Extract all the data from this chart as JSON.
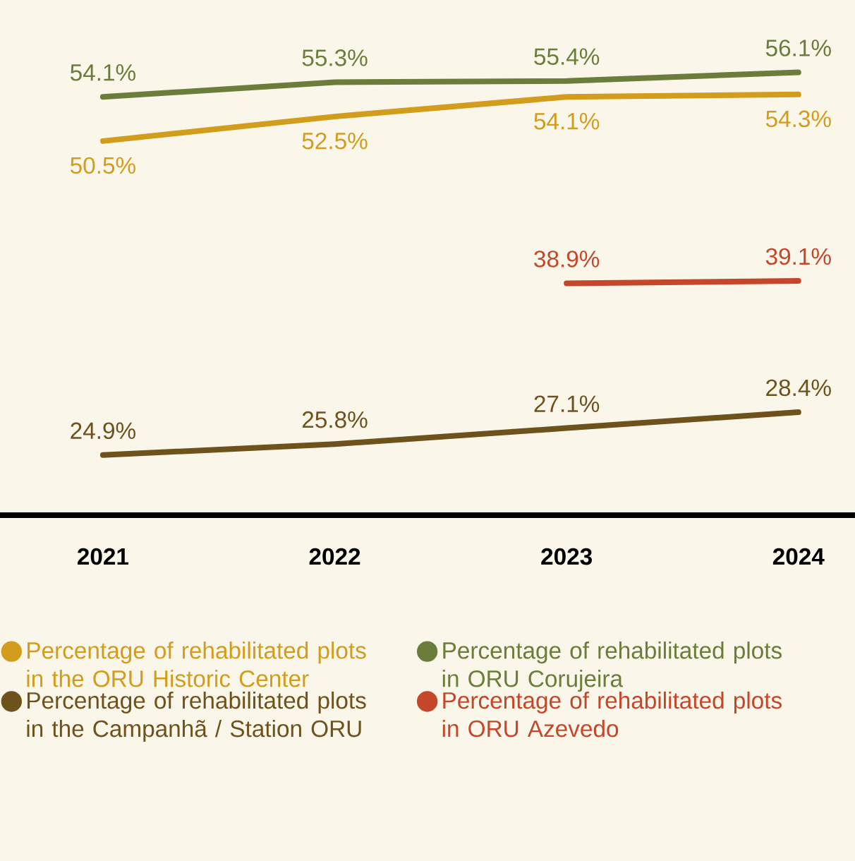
{
  "chart_data": {
    "type": "line",
    "categories": [
      "2021",
      "2022",
      "2023",
      "2024"
    ],
    "ylim": [
      20,
      62
    ],
    "tick_labels": "x",
    "legend": "bottom",
    "marker": "none",
    "line_style": "solid",
    "series": [
      {
        "name": "Percentage of rehabilitated plots in the ORU Historic Center",
        "color": "#d29d1c",
        "values": [
          50.5,
          52.5,
          54.1,
          54.3
        ],
        "value_labels": [
          "50.5%",
          "52.5%",
          "54.1%",
          "54.3%"
        ]
      },
      {
        "name": "Percentage of rehabilitated plots in ORU Corujeira",
        "color": "#6b7d3a",
        "values": [
          54.1,
          55.3,
          55.4,
          56.1
        ],
        "value_labels": [
          "54.1%",
          "55.3%",
          "55.4%",
          "56.1%"
        ]
      },
      {
        "name": "Percentage of rehabilitated plots in the Campanhã / Station ORU",
        "color": "#6e521c",
        "values": [
          24.9,
          25.8,
          27.1,
          28.4
        ],
        "value_labels": [
          "24.9%",
          "25.8%",
          "27.1%",
          "28.4%"
        ]
      },
      {
        "name": "Percentage of rehabilitated plots in ORU Azevedo",
        "color": "#c4472a",
        "values": [
          null,
          null,
          38.9,
          39.1
        ],
        "value_labels": [
          null,
          null,
          "38.9%",
          "39.1%"
        ]
      }
    ]
  }
}
